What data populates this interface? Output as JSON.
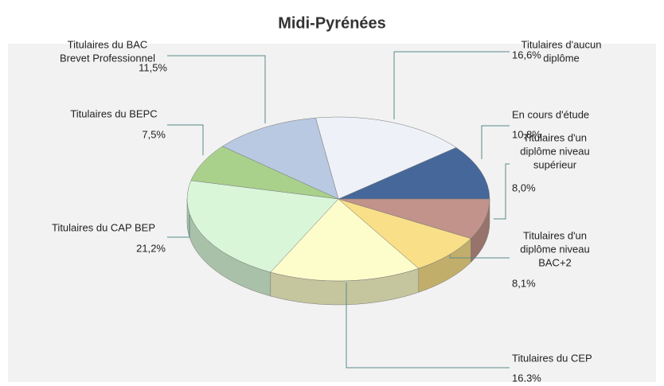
{
  "chart_data": {
    "type": "pie",
    "title": "Midi-Pyrénées",
    "categories": [
      [
        "En cours d'étude"
      ],
      [
        "Titulaires d'aucun",
        "diplôme"
      ],
      [
        "Titulaires du BAC",
        "Brevet Professionnel"
      ],
      [
        "Titulaires du BEPC"
      ],
      [
        "Titulaires du CAP BEP"
      ],
      [
        "Titulaires du CEP"
      ],
      [
        "Titulaires d'un",
        "diplôme niveau",
        "BAC+2"
      ],
      [
        "Titulaires d'un",
        "diplôme niveau",
        "supérieur"
      ]
    ],
    "values": [
      10.8,
      16.6,
      11.5,
      7.5,
      21.2,
      16.3,
      8.1,
      8.0
    ],
    "value_labels": [
      "10,8%",
      "16,6%",
      "11,5%",
      "7,5%",
      "21,2%",
      "16,3%",
      "8,1%",
      "8,0%"
    ],
    "colors": [
      "#46679a",
      "#eef2f8",
      "#b9c9e1",
      "#a9d18c",
      "#d9f6d9",
      "#fdfccb",
      "#f8df88",
      "#c1938b"
    ]
  }
}
